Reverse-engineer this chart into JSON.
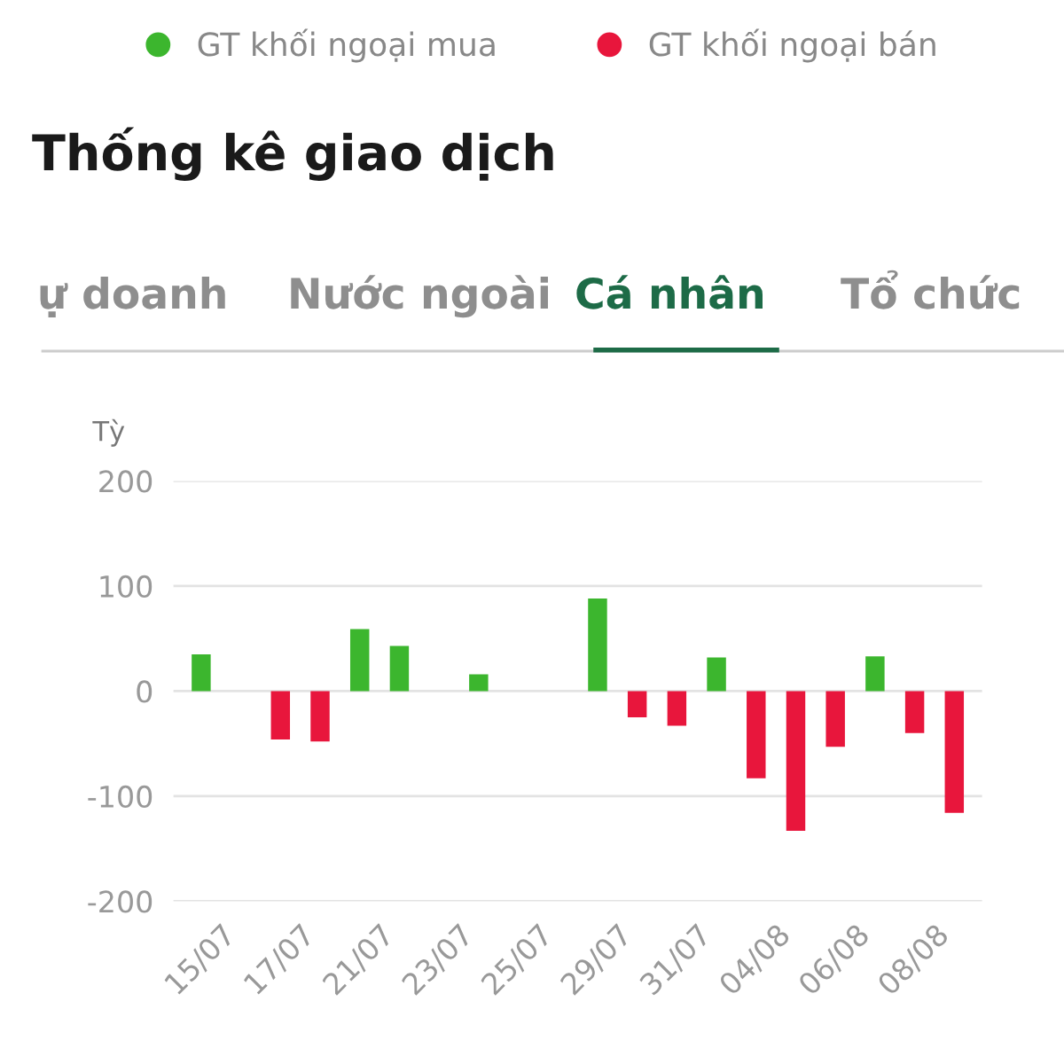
{
  "chart_data": {
    "type": "bar",
    "title": "Thống kê giao dịch",
    "ylabel": "Tỳ",
    "annotations": [
      "ự doanh",
      "Nước ngoài",
      "Cá nhân",
      "Tổ chức"
    ],
    "categories": [
      "15/07",
      null,
      "17/07",
      null,
      "21/07",
      null,
      "23/07",
      null,
      "25/07",
      null,
      "29/07",
      null,
      "31/07",
      null,
      "04/08",
      null,
      "06/08",
      null,
      "08/08",
      null
    ],
    "series": [
      {
        "name": "GT khối ngoại mua",
        "color": "#3cb62e",
        "values": [
          35,
          null,
          null,
          null,
          59,
          43,
          null,
          16,
          null,
          null,
          88,
          null,
          null,
          32,
          null,
          null,
          null,
          33,
          null,
          null
        ]
      },
      {
        "name": "GT khối ngoại bán",
        "color": "#e8163c",
        "values": [
          null,
          null,
          -46,
          -48,
          null,
          null,
          null,
          null,
          null,
          null,
          null,
          -25,
          -33,
          null,
          -83,
          -133,
          -53,
          null,
          -40,
          -116
        ]
      }
    ],
    "ylim": [
      -200,
      200
    ],
    "yticks": [
      -200,
      -100,
      0,
      100,
      200
    ],
    "grid": "y",
    "legend": "top"
  }
}
